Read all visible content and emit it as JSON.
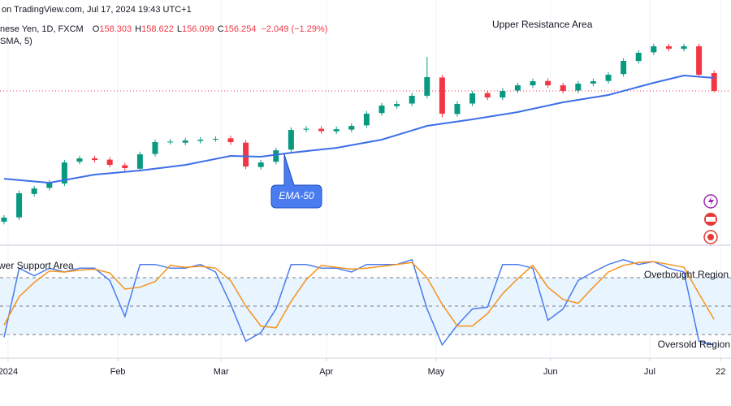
{
  "header": {
    "line1": "on TradingView.com, Jul 17, 2024 19:43 UTC+1",
    "symbol": "nese Yen, 1D, FXCM",
    "ohlc": [
      {
        "label": "O",
        "value": "158.303"
      },
      {
        "label": "H",
        "value": "158.622"
      },
      {
        "label": "L",
        "value": "156.099"
      },
      {
        "label": "C",
        "value": "156.254"
      }
    ],
    "change": "−2.049 (−1.29%)",
    "line3": "SMA, 5)"
  },
  "chart_data": [
    {
      "type": "candlestick",
      "x": [
        0,
        3,
        6,
        9,
        12,
        15,
        18,
        21,
        24,
        27,
        30,
        33,
        36,
        39,
        42,
        45,
        48,
        51,
        54,
        57,
        60,
        63,
        66,
        69,
        72,
        75,
        78,
        81,
        84,
        87,
        90,
        93,
        96,
        99,
        102,
        105,
        108,
        111,
        114,
        117,
        120,
        123,
        126,
        129,
        132,
        135,
        138,
        141
      ],
      "open": [
        141.2,
        141.7,
        144.4,
        145.1,
        145.6,
        148.1,
        148.5,
        148.35,
        147.7,
        147.3,
        149.0,
        150.4,
        150.3,
        150.5,
        150.7,
        150.8,
        150.3,
        147.5,
        148.1,
        149.5,
        151.8,
        151.9,
        151.6,
        151.8,
        152.3,
        153.7,
        154.5,
        154.8,
        155.7,
        157.8,
        153.6,
        154.8,
        156.0,
        155.5,
        156.3,
        156.9,
        157.4,
        156.9,
        156.3,
        157.1,
        157.4,
        158.2,
        159.7,
        160.7,
        161.4,
        161.1,
        161.4,
        158.303
      ],
      "high": [
        141.97,
        144.77,
        145.33,
        145.98,
        148.32,
        148.79,
        148.8,
        148.65,
        148.0,
        149.26,
        150.66,
        150.72,
        150.85,
        150.94,
        151.03,
        151.1,
        150.6,
        148.32,
        149.72,
        152.06,
        152.2,
        152.2,
        152.15,
        152.53,
        153.93,
        154.87,
        155.1,
        155.99,
        160.18,
        158.1,
        155.05,
        156.27,
        156.3,
        156.6,
        157.2,
        157.67,
        157.7,
        157.2,
        157.39,
        157.67,
        158.42,
        160.01,
        160.94,
        161.69,
        161.7,
        161.69,
        161.7,
        158.622
      ],
      "low": [
        140.9,
        141.4,
        144.1,
        144.8,
        145.3,
        147.8,
        148.0,
        147.44,
        147.0,
        147.0,
        148.7,
        150.1,
        150.0,
        150.2,
        150.4,
        150.06,
        147.25,
        147.2,
        147.8,
        149.2,
        151.5,
        151.32,
        151.3,
        151.5,
        152.0,
        153.4,
        154.2,
        154.5,
        155.4,
        153.2,
        153.3,
        154.5,
        155.2,
        155.2,
        156.0,
        156.6,
        156.6,
        155.95,
        156.0,
        156.8,
        157.1,
        157.9,
        159.4,
        160.4,
        160.81,
        160.8,
        157.82,
        156.099
      ],
      "close": [
        141.67,
        144.47,
        145.03,
        145.68,
        148.02,
        148.49,
        148.3,
        147.74,
        147.37,
        148.96,
        150.36,
        150.42,
        150.55,
        150.64,
        150.73,
        150.36,
        147.55,
        148.02,
        149.42,
        151.76,
        151.9,
        151.62,
        151.85,
        152.23,
        153.63,
        154.57,
        154.75,
        155.69,
        157.84,
        153.63,
        154.75,
        155.97,
        155.5,
        156.25,
        156.9,
        157.37,
        156.9,
        156.25,
        157.09,
        157.37,
        158.12,
        159.71,
        160.64,
        161.39,
        161.11,
        161.39,
        158.12,
        156.254
      ],
      "up_color": "#089981",
      "down_color": "#f23645",
      "xlim": [
        -0.8,
        144.35
      ],
      "ylim": [
        138.68,
        166.72
      ],
      "annotations": [
        "Upper Resistance Area"
      ],
      "series": [
        {
          "name": "EMA-50",
          "color": "#3d6ee8",
          "x": [
            0,
            9,
            18,
            27,
            36,
            45,
            51,
            57,
            66,
            75,
            84,
            93,
            102,
            111,
            120,
            129,
            135,
            141
          ],
          "values": [
            146.15,
            145.68,
            146.62,
            147.09,
            147.74,
            148.77,
            148.68,
            149.14,
            149.7,
            150.64,
            152.23,
            152.98,
            153.82,
            154.94,
            155.78,
            157.19,
            158.03,
            157.75
          ]
        }
      ]
    },
    {
      "type": "line",
      "x": [
        0,
        3,
        6,
        9,
        12,
        15,
        18,
        21,
        24,
        27,
        30,
        33,
        36,
        39,
        42,
        45,
        48,
        51,
        54,
        57,
        60,
        63,
        66,
        69,
        72,
        75,
        78,
        81,
        84,
        87,
        90,
        93,
        96,
        99,
        102,
        105,
        108,
        111,
        114,
        117,
        120,
        123,
        126,
        129,
        132,
        135,
        138,
        141
      ],
      "xlim": [
        -0.8,
        144.35
      ],
      "ylim": [
        -4,
        111.7
      ],
      "levels": [
        80,
        50,
        20
      ],
      "annotations": [
        "wer Support Area",
        "Overbought Region",
        "Oversold Region"
      ],
      "series": [
        {
          "color": "#4a7cf0",
          "values": [
            17,
            90,
            82,
            90,
            86,
            90,
            90,
            77,
            39,
            94,
            94,
            90,
            90,
            94,
            86,
            52,
            13,
            22,
            47,
            94,
            94,
            90,
            90,
            86,
            94,
            94,
            94,
            99,
            47,
            9,
            30,
            47,
            49,
            94,
            94,
            90,
            35,
            47,
            77,
            86,
            94,
            99,
            94,
            97,
            90,
            86,
            13,
            9
          ]
        },
        {
          "color": "#f7931e",
          "values": [
            30,
            60,
            75,
            87,
            86,
            88,
            89,
            85,
            68,
            70,
            76,
            93,
            91,
            92,
            90,
            77,
            50,
            29,
            27,
            55,
            78,
            93,
            91,
            89,
            90,
            92,
            94,
            96,
            80,
            52,
            29,
            29,
            42,
            63,
            79,
            93,
            70,
            57,
            53,
            70,
            86,
            93,
            96,
            97,
            94,
            91,
            63,
            36
          ]
        }
      ],
      "xticks": [
        {
          "value": 0.8,
          "label": "2024"
        },
        {
          "value": 22.6,
          "label": "Feb"
        },
        {
          "value": 43.1,
          "label": "Mar"
        },
        {
          "value": 64,
          "label": "Apr"
        },
        {
          "value": 85.8,
          "label": "May"
        },
        {
          "value": 108.5,
          "label": "Jun"
        },
        {
          "value": 128.2,
          "label": "Jul"
        },
        {
          "value": 142.3,
          "label": "22"
        }
      ]
    }
  ]
}
